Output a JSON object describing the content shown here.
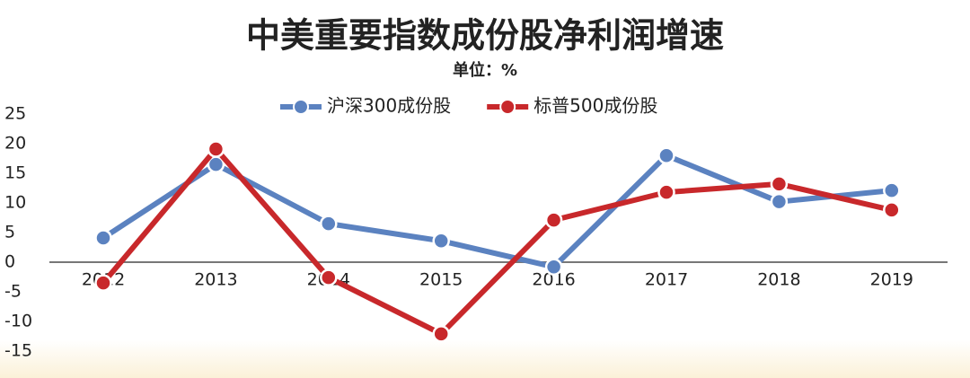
{
  "chart_data": {
    "type": "line",
    "title": "中美重要指数成份股净利润增速",
    "subtitle": "单位：%",
    "categories": [
      "2012",
      "2013",
      "2014",
      "2015",
      "2016",
      "2017",
      "2018",
      "2019"
    ],
    "series": [
      {
        "name": "沪深300成份股",
        "color": "#5b82c0",
        "values": [
          4.1,
          16.5,
          6.5,
          3.6,
          -0.8,
          18,
          10.2,
          12.1
        ]
      },
      {
        "name": "标普500成份股",
        "color": "#c8282b",
        "values": [
          -3.5,
          19.1,
          -2.6,
          -12.1,
          7.1,
          11.8,
          13.2,
          8.8
        ]
      }
    ],
    "ylim": [
      -15,
      25
    ],
    "yticks": [
      -15,
      -10,
      -5,
      0,
      5,
      10,
      15,
      20,
      25
    ],
    "legend": "top"
  }
}
